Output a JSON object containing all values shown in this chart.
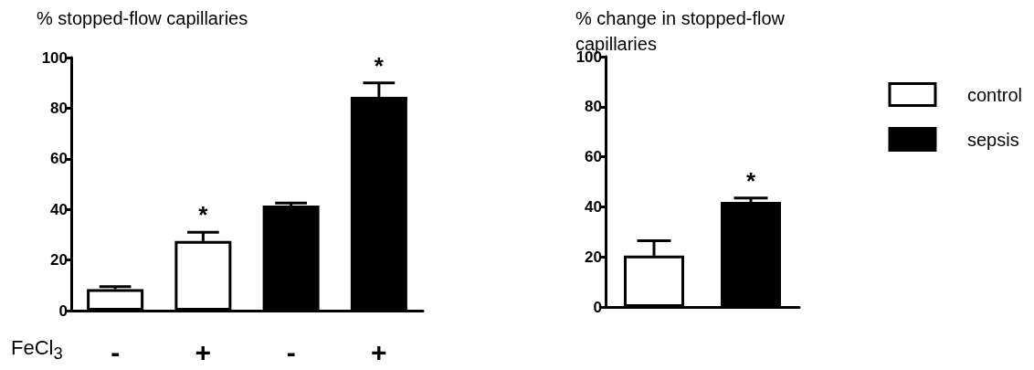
{
  "chart_data": [
    {
      "type": "bar",
      "ylabel": "%  stopped-flow capillaries",
      "xlabel": "FeCl$_{3}$",
      "categories": [
        "-",
        "+",
        "-",
        "+"
      ],
      "values": [
        8.5,
        27.5,
        41.5,
        84.5
      ],
      "colors": [
        "#ffffff",
        "#ffffff",
        "#000000",
        "#000000"
      ],
      "errors": [
        [
          8.5,
          9.5
        ],
        [
          27.5,
          31
        ],
        [
          41.5,
          42.5
        ],
        [
          84.5,
          90
        ]
      ],
      "value_labels": [
        null,
        "*",
        null,
        "*"
      ],
      "ylim": [
        0,
        100
      ],
      "yticks": [
        0,
        20,
        40,
        60,
        80,
        100
      ],
      "grid": false,
      "legend": false
    },
    {
      "type": "bar",
      "ylabel": "%  change in stopped-flow capillaries",
      "categories": [
        null,
        null
      ],
      "stacked": true,
      "series": [
        {
          "name": "control",
          "color": "#ffffff",
          "values": [
            20.5,
            null
          ],
          "errors": [
            [
              20.5,
              26.5
            ],
            null
          ],
          "value_labels": [
            null,
            null
          ]
        },
        {
          "name": "sepsis",
          "color": "#000000",
          "values": [
            null,
            42
          ],
          "errors": [
            null,
            [
              42,
              43.5
            ]
          ],
          "value_labels": [
            null,
            "*"
          ]
        }
      ],
      "ylim": [
        0,
        100
      ],
      "yticks": [
        0,
        20,
        40,
        60,
        80,
        100
      ],
      "grid": false,
      "legend": "right"
    }
  ]
}
